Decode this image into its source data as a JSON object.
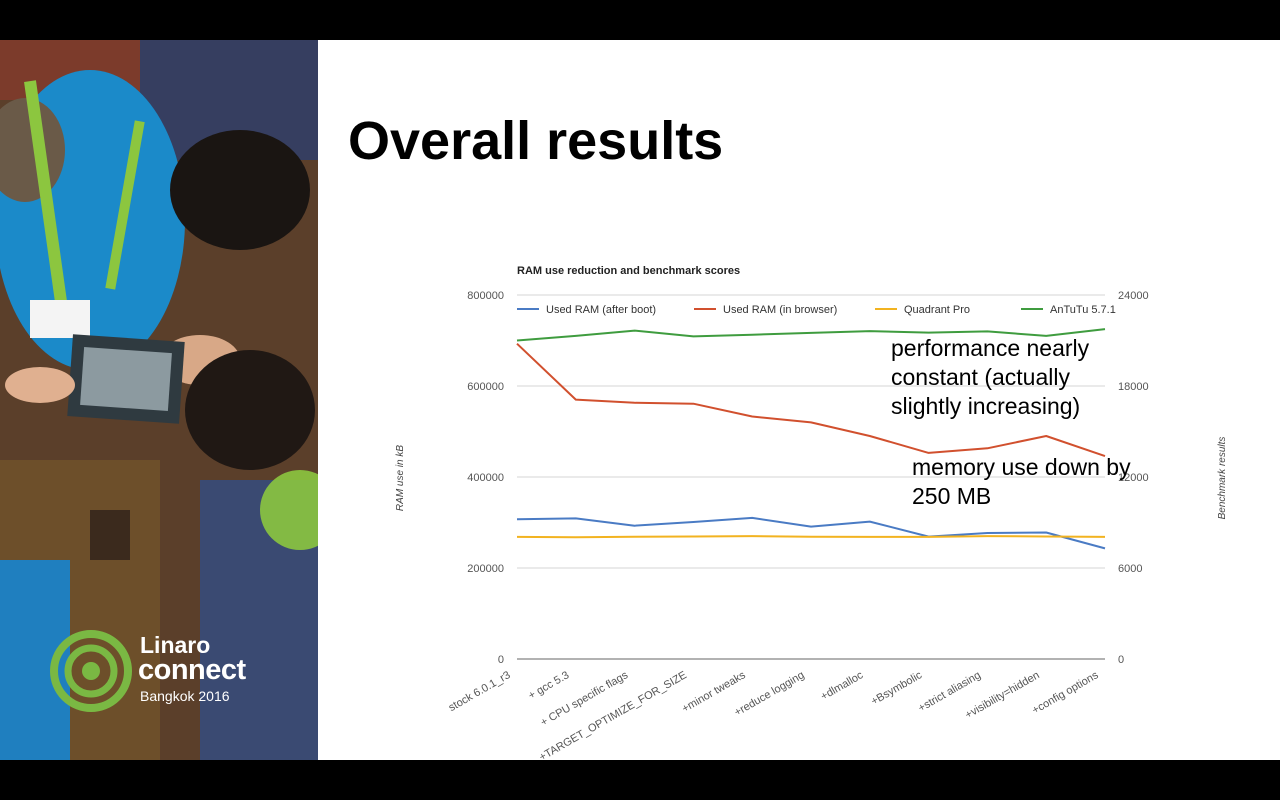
{
  "slide": {
    "title": "Overall results",
    "annotations": [
      "performance nearly constant (actually slightly increasing)",
      "memory use down by 250 MB"
    ]
  },
  "logo": {
    "line1": "Linaro",
    "line2": "connect",
    "line3": "Bangkok 2016",
    "color": "#7ab843"
  },
  "chart_data": {
    "type": "line",
    "title": "RAM use reduction and benchmark scores",
    "ylabel": "RAM use in kB",
    "y2label": "Benchmark results",
    "ylim": [
      0,
      800000
    ],
    "y2lim": [
      0,
      24000
    ],
    "yticks": [
      "0",
      "200000",
      "400000",
      "600000",
      "800000"
    ],
    "y2ticks": [
      "0",
      "6000",
      "12000",
      "18000",
      "24000"
    ],
    "legend_position": "top",
    "grid": true,
    "categories": [
      "stock 6.0.1_r3",
      "+ gcc 5.3",
      "+ CPU specific flags",
      "+TARGET_OPTIMIZE_FOR_SIZE",
      "+minor tweaks",
      "+reduce logging",
      "+dlmalloc",
      "+Bsymbolic",
      "+strict aliasing",
      "+visibility=hidden",
      "+config options"
    ],
    "series": [
      {
        "name": "Used RAM (after boot)",
        "axis": "left",
        "color": "#4a7bc4",
        "values": [
          307000,
          309000,
          293000,
          301000,
          310000,
          291000,
          302000,
          269000,
          277000,
          278000,
          243000
        ]
      },
      {
        "name": "Used RAM (in browser)",
        "axis": "left",
        "color": "#d1502e",
        "values": [
          693000,
          570000,
          563000,
          561000,
          533000,
          520000,
          490000,
          453000,
          463000,
          490000,
          446000
        ]
      },
      {
        "name": "Quadrant Pro",
        "axis": "right",
        "color": "#f2b320",
        "values": [
          8050,
          8030,
          8060,
          8080,
          8100,
          8060,
          8050,
          8050,
          8100,
          8080,
          8050
        ]
      },
      {
        "name": "AnTuTu 5.7.1",
        "axis": "right",
        "color": "#3f9c3f",
        "values": [
          21000,
          21300,
          21650,
          21270,
          21380,
          21500,
          21620,
          21520,
          21600,
          21300,
          21750
        ]
      }
    ]
  }
}
